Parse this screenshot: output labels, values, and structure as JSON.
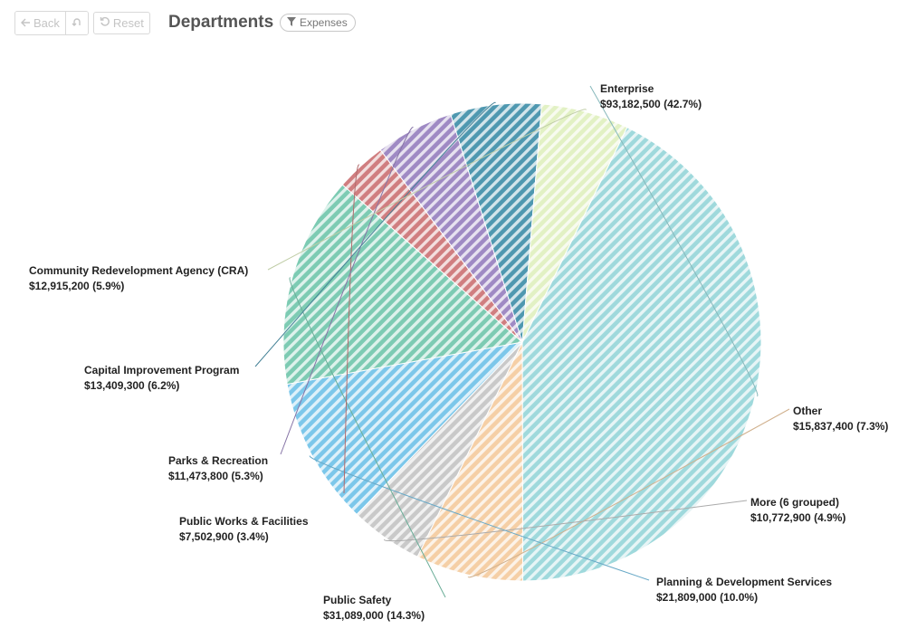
{
  "toolbar": {
    "back_label": "Back",
    "reset_label": "Reset"
  },
  "header": {
    "title": "Departments",
    "filter_label": "Expenses"
  },
  "chart_data": {
    "type": "pie",
    "title": "Departments",
    "slices": [
      {
        "name": "Enterprise",
        "value_label": "$93,182,500 (42.7%)",
        "value": 93182500,
        "percent": 42.7,
        "color": "#9fd9dc"
      },
      {
        "name": "Other",
        "value_label": "$15,837,400 (7.3%)",
        "value": 15837400,
        "percent": 7.3,
        "color": "#f5cfa6"
      },
      {
        "name": "More (6 grouped)",
        "value_label": "$10,772,900 (4.9%)",
        "value": 10772900,
        "percent": 4.9,
        "color": "#c9c9c9"
      },
      {
        "name": "Planning & Development Services",
        "value_label": "$21,809,000 (10.0%)",
        "value": 21809000,
        "percent": 10.0,
        "color": "#7cc7ea"
      },
      {
        "name": "Public Safety",
        "value_label": "$31,089,000 (14.3%)",
        "value": 31089000,
        "percent": 14.3,
        "color": "#7dcbb3"
      },
      {
        "name": "Public Works & Facilities",
        "value_label": "$7,502,900 (3.4%)",
        "value": 7502900,
        "percent": 3.4,
        "color": "#d07e80"
      },
      {
        "name": "Parks & Recreation",
        "value_label": "$11,473,800 (5.3%)",
        "value": 11473800,
        "percent": 5.3,
        "color": "#9f8ac4"
      },
      {
        "name": "Capital Improvement Program",
        "value_label": "$13,409,300 (6.2%)",
        "value": 13409300,
        "percent": 6.2,
        "color": "#4f98b0"
      },
      {
        "name": "Community Redevelopment Agency (CRA)",
        "value_label": "$12,915,200 (5.9%)",
        "value": 12915200,
        "percent": 5.9,
        "color": "#e2f1c4"
      }
    ]
  }
}
